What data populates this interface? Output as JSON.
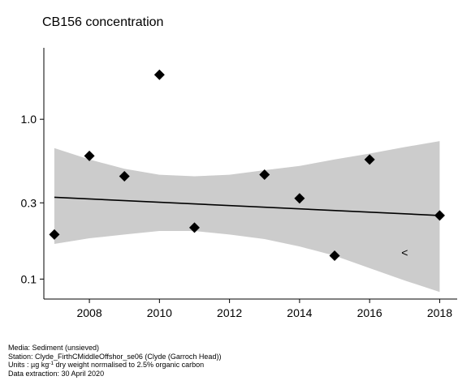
{
  "title": "CB156 concentration",
  "chart_data": {
    "type": "scatter",
    "title": "CB156 concentration",
    "xlabel": "",
    "ylabel": "",
    "x_ticks": [
      2008,
      2010,
      2012,
      2014,
      2016,
      2018
    ],
    "y_ticks": [
      0.1,
      0.3,
      1.0
    ],
    "y_tick_labels": [
      "0.1",
      "0.3",
      "1.0"
    ],
    "y_scale": "log",
    "xlim": [
      2006.7,
      2018.5
    ],
    "ylim": [
      0.075,
      2.8
    ],
    "grid": false,
    "points": [
      {
        "x": 2007,
        "y": 0.19
      },
      {
        "x": 2008,
        "y": 0.59
      },
      {
        "x": 2009,
        "y": 0.44
      },
      {
        "x": 2010,
        "y": 1.9
      },
      {
        "x": 2011,
        "y": 0.21
      },
      {
        "x": 2013,
        "y": 0.45
      },
      {
        "x": 2014,
        "y": 0.32
      },
      {
        "x": 2015,
        "y": 0.14
      },
      {
        "x": 2016,
        "y": 0.56
      },
      {
        "x": 2018,
        "y": 0.25
      }
    ],
    "trend": {
      "x": [
        2007,
        2018
      ],
      "y": [
        0.325,
        0.25
      ]
    },
    "confidence_band": {
      "x": [
        2007,
        2008,
        2009,
        2010,
        2011,
        2012,
        2013,
        2014,
        2015,
        2016,
        2017,
        2018
      ],
      "upper": [
        0.66,
        0.56,
        0.49,
        0.45,
        0.44,
        0.45,
        0.48,
        0.51,
        0.56,
        0.61,
        0.67,
        0.73
      ],
      "lower": [
        0.166,
        0.18,
        0.19,
        0.2,
        0.2,
        0.19,
        0.178,
        0.16,
        0.14,
        0.117,
        0.098,
        0.083
      ]
    },
    "annotation": {
      "text": "<",
      "x": 2017,
      "y": 0.147
    },
    "colors": {
      "points": "#000000",
      "band": "#cccccc",
      "trend": "#000000"
    }
  },
  "footer": {
    "media": "Media: Sediment (unsieved)",
    "station": "Station: Clyde_FirthCMiddleOffshor_se06 (Clyde (Garroch Head))",
    "units_prefix": "Units : µg kg",
    "units_sup": "-1",
    "units_suffix": " dry weight normalised to 2.5% organic carbon",
    "extraction": "Data extraction: 30 April 2020"
  }
}
